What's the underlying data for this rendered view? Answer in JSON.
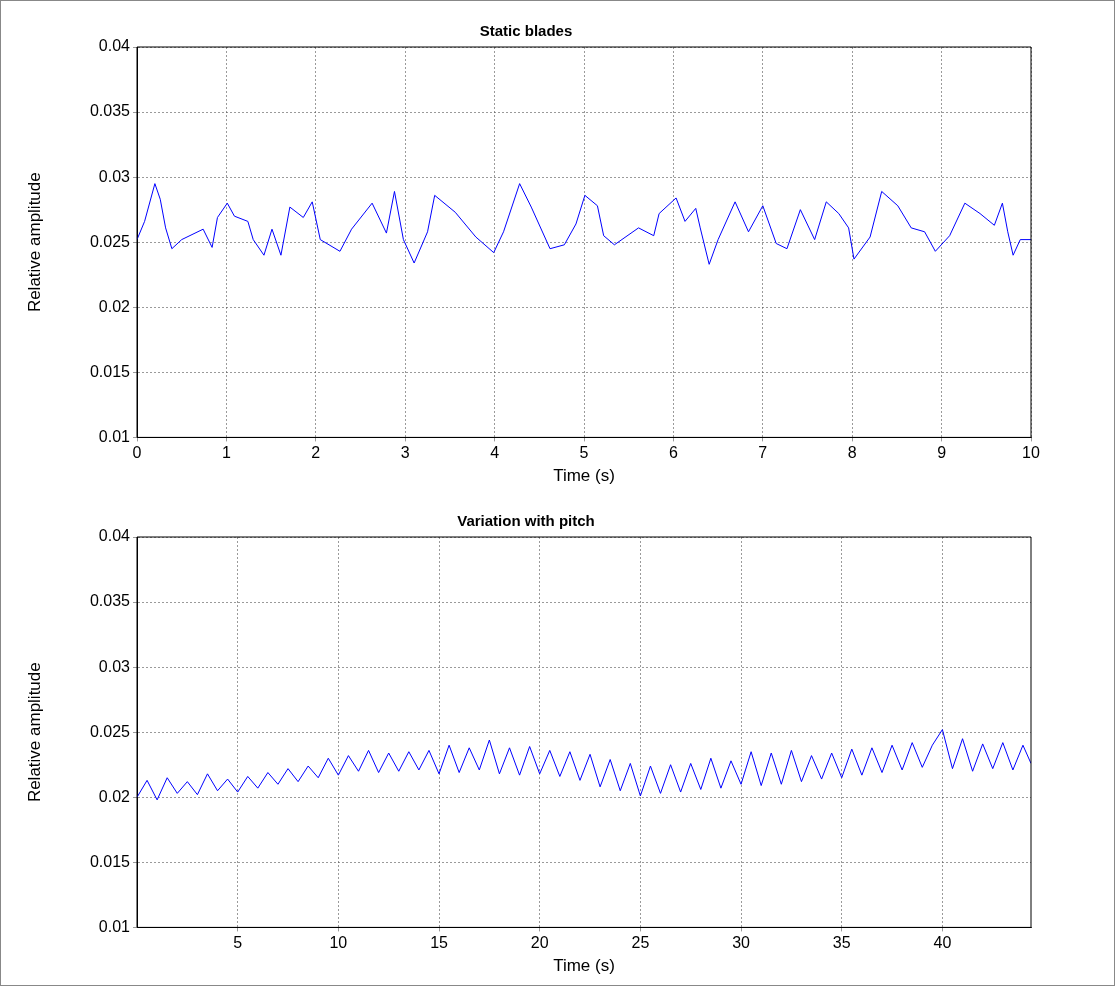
{
  "chart_data": [
    {
      "type": "line",
      "title": "Static blades",
      "xlabel": "Time (s)",
      "ylabel": "Relative amplitude",
      "xlim": [
        0,
        10
      ],
      "xticks": [
        0,
        1,
        2,
        3,
        4,
        5,
        6,
        7,
        8,
        9,
        10
      ],
      "ylim": [
        0.01,
        0.04
      ],
      "yticks": [
        0.01,
        0.015,
        0.02,
        0.025,
        0.03,
        0.035,
        0.04
      ],
      "grid": true,
      "marker": "none",
      "line_style": "solid",
      "series": [
        {
          "color": "#0000ff",
          "x": [
            0,
            0.085,
            0.2,
            0.26,
            0.32,
            0.39,
            0.5,
            0.74,
            0.84,
            0.9,
            1.01,
            1.09,
            1.24,
            1.3,
            1.42,
            1.51,
            1.61,
            1.71,
            1.86,
            1.96,
            2.05,
            2.27,
            2.4,
            2.63,
            2.79,
            2.88,
            2.98,
            3.1,
            3.25,
            3.33,
            3.56,
            3.79,
            3.99,
            4.1,
            4.28,
            4.41,
            4.62,
            4.78,
            4.91,
            5.01,
            5.15,
            5.22,
            5.34,
            5.61,
            5.78,
            5.84,
            6.03,
            6.13,
            6.25,
            6.3,
            6.4,
            6.5,
            6.69,
            6.84,
            7.0,
            7.15,
            7.27,
            7.42,
            7.58,
            7.71,
            7.85,
            7.96,
            8.02,
            8.2,
            8.33,
            8.51,
            8.66,
            8.81,
            8.93,
            9.09,
            9.26,
            9.43,
            9.59,
            9.68,
            9.74,
            9.8,
            9.88,
            10
          ],
          "values": [
            0.0252,
            0.0266,
            0.0295,
            0.0283,
            0.0261,
            0.0245,
            0.0252,
            0.026,
            0.0246,
            0.0269,
            0.028,
            0.027,
            0.0266,
            0.0252,
            0.024,
            0.026,
            0.024,
            0.0277,
            0.0269,
            0.0281,
            0.0252,
            0.0243,
            0.026,
            0.028,
            0.0257,
            0.0289,
            0.0252,
            0.0234,
            0.0258,
            0.0286,
            0.0273,
            0.0254,
            0.0242,
            0.0258,
            0.0295,
            0.0277,
            0.0245,
            0.0248,
            0.0264,
            0.0286,
            0.0278,
            0.0255,
            0.0248,
            0.0261,
            0.0255,
            0.0272,
            0.0284,
            0.0266,
            0.0276,
            0.0261,
            0.0233,
            0.0252,
            0.0281,
            0.0258,
            0.0278,
            0.0249,
            0.0245,
            0.0275,
            0.0252,
            0.0281,
            0.0272,
            0.0261,
            0.0237,
            0.0254,
            0.0289,
            0.0278,
            0.0261,
            0.0258,
            0.0243,
            0.0255,
            0.028,
            0.0272,
            0.0263,
            0.028,
            0.0258,
            0.024,
            0.0252,
            0.0252
          ]
        }
      ]
    },
    {
      "type": "line",
      "title": "Variation with pitch",
      "xlabel": "Time (s)",
      "ylabel": "Relative amplitude",
      "xlim": [
        0,
        44.4
      ],
      "xticks": [
        5,
        10,
        15,
        20,
        25,
        30,
        35,
        40
      ],
      "ylim": [
        0.01,
        0.04
      ],
      "yticks": [
        0.01,
        0.015,
        0.02,
        0.025,
        0.03,
        0.035,
        0.04
      ],
      "grid": true,
      "marker": "none",
      "line_style": "solid",
      "series": [
        {
          "color": "#0000ff",
          "x": [
            0,
            0.5,
            1,
            1.5,
            2,
            2.5,
            3,
            3.5,
            4,
            4.5,
            5,
            5.5,
            6,
            6.5,
            7,
            7.5,
            8,
            8.5,
            9,
            9.5,
            10,
            10.5,
            11,
            11.5,
            12,
            12.5,
            13,
            13.5,
            14,
            14.5,
            15,
            15.5,
            16,
            16.5,
            17,
            17.5,
            18,
            18.5,
            19,
            19.5,
            20,
            20.5,
            21,
            21.5,
            22,
            22.5,
            23,
            23.5,
            24,
            24.5,
            25,
            25.5,
            26,
            26.5,
            27,
            27.5,
            28,
            28.5,
            29,
            29.5,
            30,
            30.5,
            31,
            31.5,
            32,
            32.5,
            33,
            33.5,
            34,
            34.5,
            35,
            35.5,
            36,
            36.5,
            37,
            37.5,
            38,
            38.5,
            39,
            39.5,
            40,
            40.5,
            41,
            41.5,
            42,
            42.5,
            43,
            43.5,
            44,
            44.4
          ],
          "values": [
            0.02,
            0.0213,
            0.0198,
            0.0215,
            0.0203,
            0.0212,
            0.0202,
            0.0218,
            0.0205,
            0.0214,
            0.0204,
            0.0216,
            0.0207,
            0.0219,
            0.021,
            0.0222,
            0.0212,
            0.0224,
            0.0215,
            0.023,
            0.0217,
            0.0232,
            0.022,
            0.0236,
            0.0219,
            0.0234,
            0.022,
            0.0235,
            0.0221,
            0.0236,
            0.0218,
            0.024,
            0.0219,
            0.0238,
            0.0221,
            0.0244,
            0.0218,
            0.0238,
            0.0217,
            0.0239,
            0.0218,
            0.0236,
            0.0216,
            0.0235,
            0.0213,
            0.0233,
            0.0208,
            0.0229,
            0.0205,
            0.0226,
            0.0201,
            0.0224,
            0.0203,
            0.0225,
            0.0204,
            0.0226,
            0.0206,
            0.023,
            0.0207,
            0.0228,
            0.021,
            0.0235,
            0.0209,
            0.0234,
            0.021,
            0.0236,
            0.0212,
            0.0232,
            0.0214,
            0.0234,
            0.0215,
            0.0237,
            0.0217,
            0.0238,
            0.0219,
            0.024,
            0.0221,
            0.0242,
            0.0223,
            0.024,
            0.0252,
            0.0222,
            0.0245,
            0.022,
            0.0241,
            0.0222,
            0.0242,
            0.0221,
            0.024,
            0.0226
          ]
        }
      ]
    }
  ]
}
